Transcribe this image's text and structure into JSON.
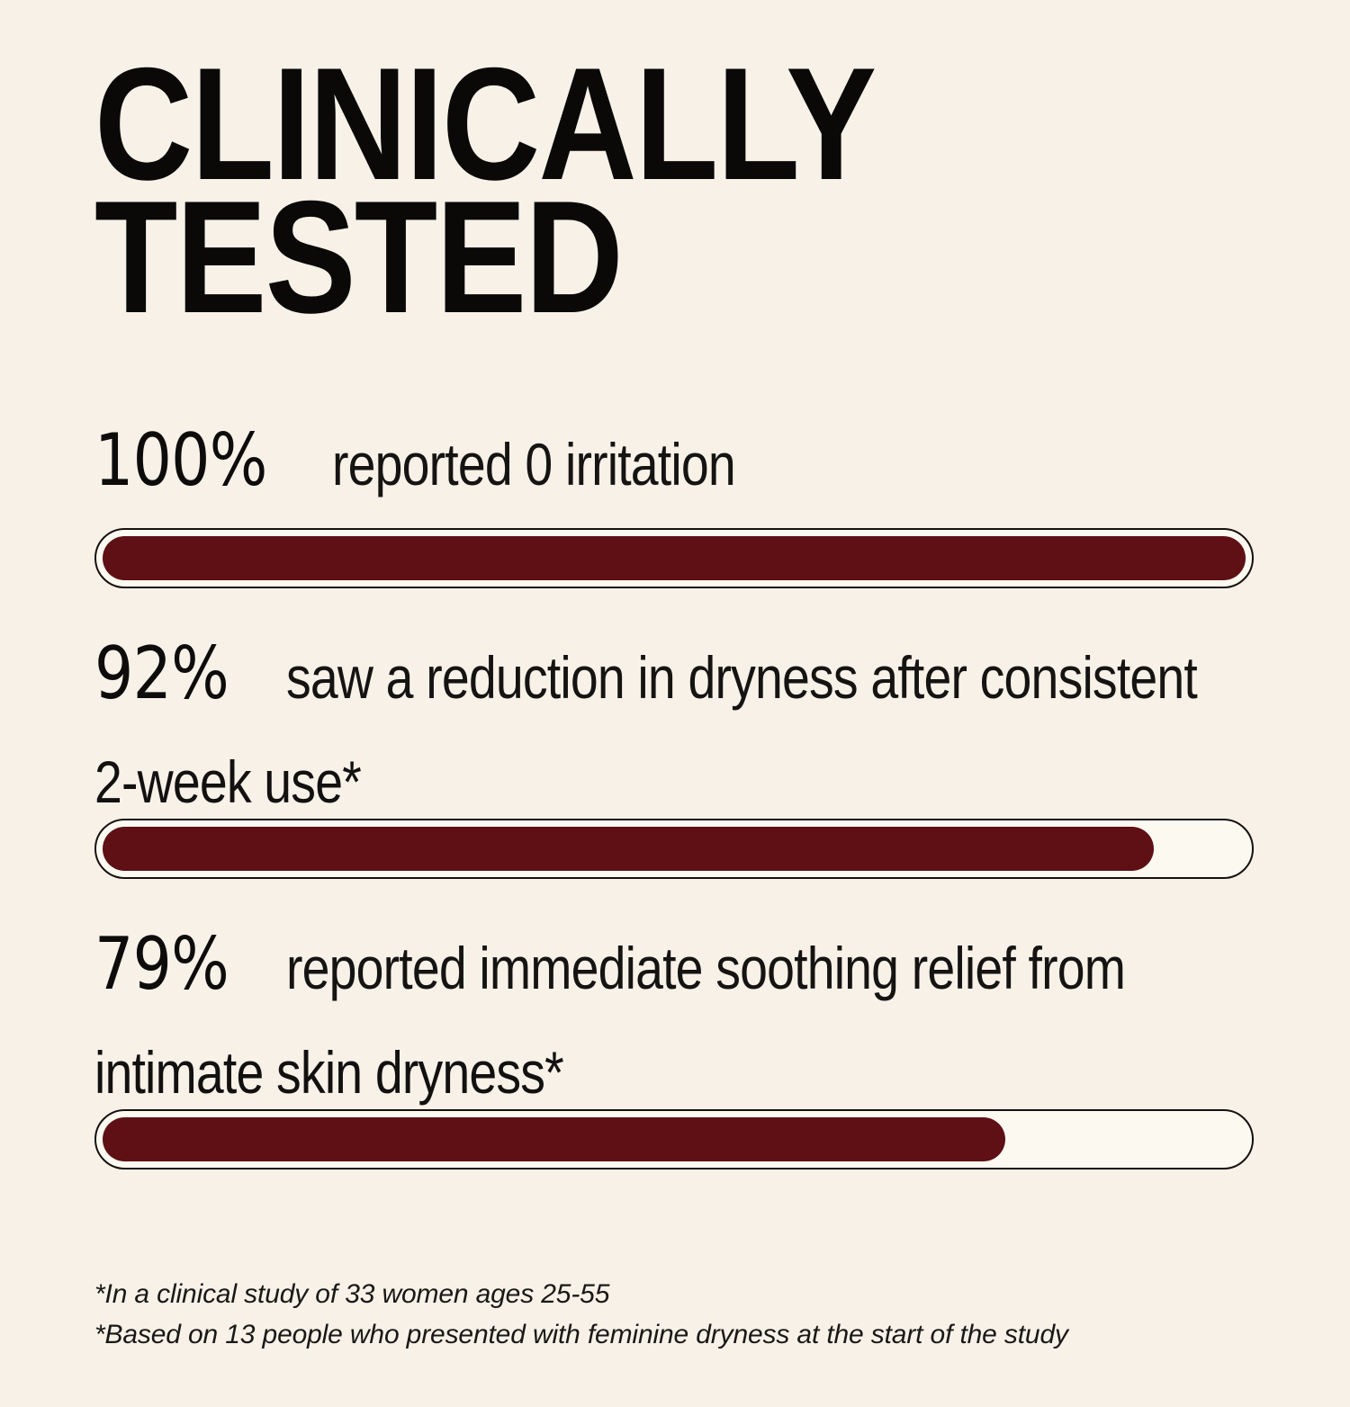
{
  "title": {
    "line1": "CLINICALLY",
    "line2": "TESTED"
  },
  "stats": [
    {
      "percent": "100%",
      "desc_line1": "reported 0 irritation",
      "desc_line2": "",
      "value": 100
    },
    {
      "percent": "92%",
      "desc_line1": "saw a reduction in dryness after consistent",
      "desc_line2": "2-week use*",
      "value": 92
    },
    {
      "percent": "79%",
      "desc_line1": "reported immediate soothing relief from",
      "desc_line2": "intimate skin dryness*",
      "value": 79
    }
  ],
  "footnotes": [
    "*In a clinical study of 33 women ages 25-55",
    "*Based on 13 people who presented with feminine dryness at the start of the study"
  ],
  "colors": {
    "background": "#F7F1E8",
    "bar_fill": "#5E1014",
    "bar_track": "#FCF9F1",
    "bar_border": "#17100E",
    "text": "#131110"
  },
  "chart_data": {
    "type": "bar",
    "title": "CLINICALLY TESTED",
    "categories": [
      "reported 0 irritation",
      "saw a reduction in dryness after consistent 2-week use*",
      "reported immediate soothing relief from intimate skin dryness*"
    ],
    "values": [
      100,
      92,
      79
    ],
    "unit": "%",
    "xlim": [
      0,
      100
    ],
    "orientation": "horizontal",
    "bar_color": "#5E1014",
    "annotations": [
      "*In a clinical study of 33 women ages 25-55",
      "*Based on 13 people who presented with feminine dryness at the start of the study"
    ]
  }
}
